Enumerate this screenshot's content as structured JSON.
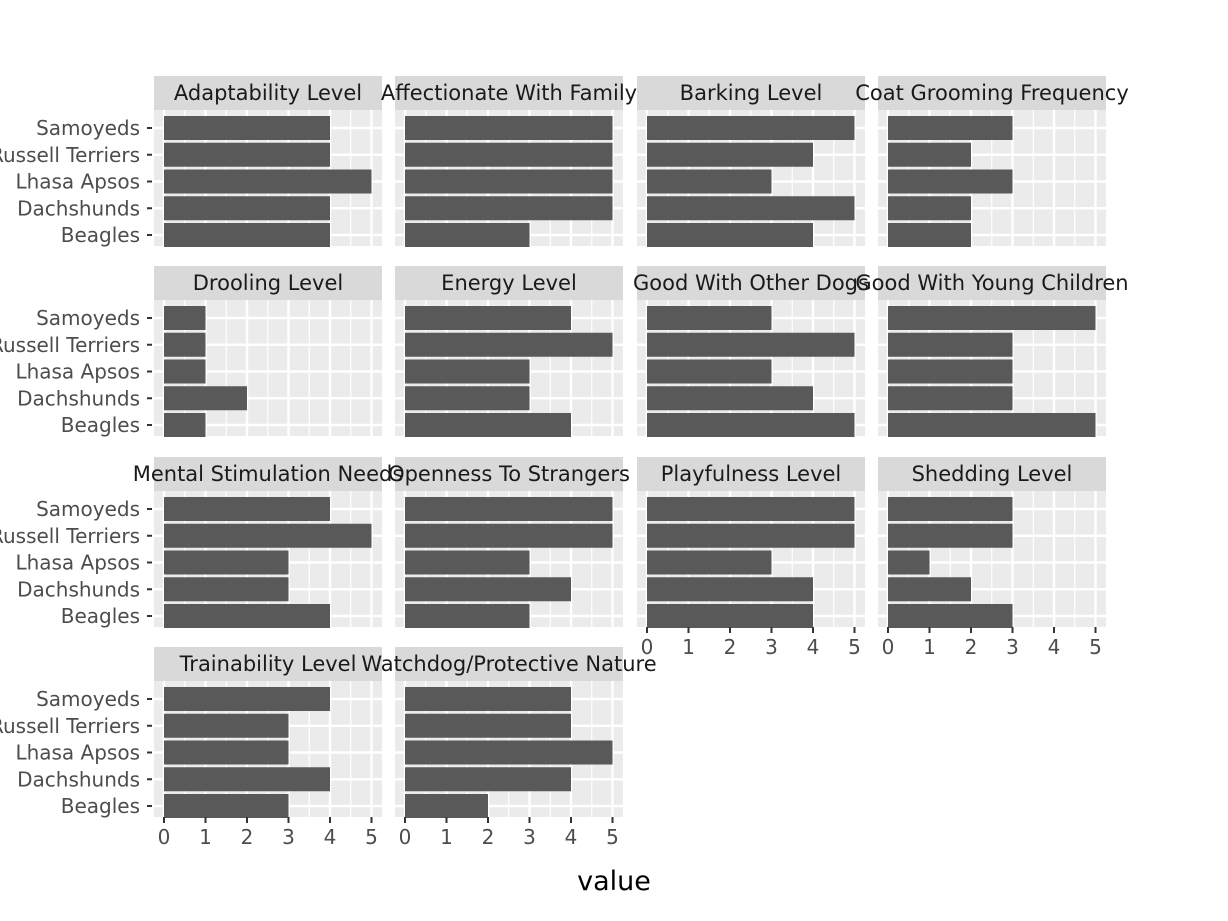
{
  "chart_data": {
    "type": "bar",
    "orientation": "horizontal",
    "facet_wrap": true,
    "ncol": 4,
    "xlabel": "value",
    "ylabel": "",
    "xlim": [
      0,
      5.2
    ],
    "x_ticks": [
      0,
      1,
      2,
      3,
      4,
      5
    ],
    "categories": [
      "Samoyeds",
      "Parson Russell Terriers",
      "Lhasa Apsos",
      "Dachshunds",
      "Beagles"
    ],
    "bar_color": "#595959",
    "panel_background": "#ebebeb",
    "strip_background": "#d9d9d9",
    "grid": true,
    "facets": [
      {
        "title": "Adaptability Level",
        "values": [
          4,
          4,
          5,
          4,
          4
        ]
      },
      {
        "title": "Affectionate With Family",
        "values": [
          5,
          5,
          5,
          5,
          3
        ]
      },
      {
        "title": "Barking Level",
        "values": [
          5,
          4,
          3,
          5,
          4
        ]
      },
      {
        "title": "Coat Grooming Frequency",
        "values": [
          3,
          2,
          3,
          2,
          2
        ]
      },
      {
        "title": "Drooling Level",
        "values": [
          1,
          1,
          1,
          2,
          1
        ]
      },
      {
        "title": "Energy Level",
        "values": [
          4,
          5,
          3,
          3,
          4
        ]
      },
      {
        "title": "Good With Other Dogs",
        "values": [
          3,
          5,
          3,
          4,
          5
        ]
      },
      {
        "title": "Good With Young Children",
        "values": [
          5,
          3,
          3,
          3,
          5
        ]
      },
      {
        "title": "Mental Stimulation Needs",
        "values": [
          4,
          5,
          3,
          3,
          4
        ]
      },
      {
        "title": "Openness To Strangers",
        "values": [
          5,
          5,
          3,
          4,
          3
        ]
      },
      {
        "title": "Playfulness Level",
        "values": [
          5,
          5,
          3,
          4,
          4
        ]
      },
      {
        "title": "Shedding Level",
        "values": [
          3,
          3,
          1,
          2,
          3
        ]
      },
      {
        "title": "Trainability Level",
        "values": [
          4,
          3,
          3,
          4,
          3
        ]
      },
      {
        "title": "Watchdog/Protective Nature",
        "values": [
          4,
          4,
          5,
          4,
          2
        ]
      }
    ]
  }
}
